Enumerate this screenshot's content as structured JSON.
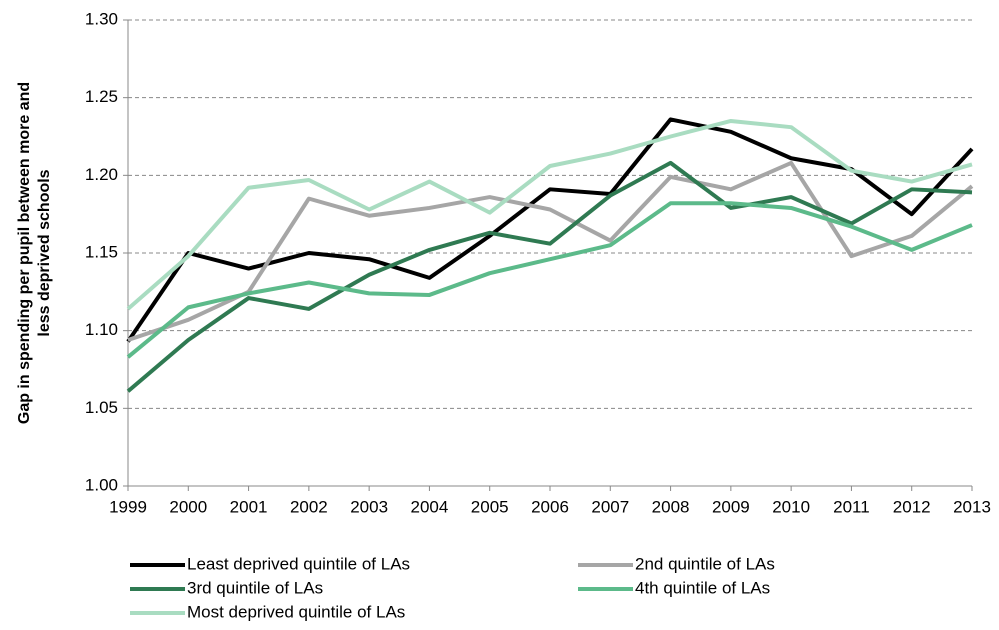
{
  "chart_data": {
    "type": "line",
    "y_label": [
      "Gap in spending per pupil between more and",
      "less deprived schools"
    ],
    "categories": [
      "1999",
      "2000",
      "2001",
      "2002",
      "2003",
      "2004",
      "2005",
      "2006",
      "2007",
      "2008",
      "2009",
      "2010",
      "2011",
      "2012",
      "2013"
    ],
    "series": [
      {
        "name": "Least deprived quintile of LAs",
        "color": "#000000",
        "values": [
          1.093,
          1.15,
          1.14,
          1.15,
          1.146,
          1.134,
          1.161,
          1.191,
          1.188,
          1.236,
          1.228,
          1.211,
          1.204,
          1.175,
          1.217
        ]
      },
      {
        "name": "2nd quintile of LAs",
        "color": "#a6a6a6",
        "values": [
          1.094,
          1.107,
          1.125,
          1.185,
          1.174,
          1.179,
          1.186,
          1.178,
          1.158,
          1.199,
          1.191,
          1.208,
          1.148,
          1.161,
          1.193
        ]
      },
      {
        "name": "3rd quintile of LAs",
        "color": "#2f7a52",
        "values": [
          1.061,
          1.094,
          1.121,
          1.114,
          1.136,
          1.152,
          1.163,
          1.156,
          1.187,
          1.208,
          1.179,
          1.186,
          1.169,
          1.191,
          1.189
        ]
      },
      {
        "name": "4th quintile of LAs",
        "color": "#5cba8a",
        "values": [
          1.083,
          1.115,
          1.124,
          1.131,
          1.124,
          1.123,
          1.137,
          1.146,
          1.155,
          1.182,
          1.182,
          1.179,
          1.167,
          1.152,
          1.168
        ]
      },
      {
        "name": "Most deprived quintile of LAs",
        "color": "#a9dcc1",
        "values": [
          1.114,
          1.148,
          1.192,
          1.197,
          1.178,
          1.196,
          1.176,
          1.206,
          1.214,
          1.225,
          1.235,
          1.231,
          1.203,
          1.196,
          1.207
        ]
      }
    ],
    "ylim": [
      1.0,
      1.3
    ],
    "yticks": [
      {
        "value": 1.0,
        "label": "1.00"
      },
      1.05,
      {
        "value": 1.1,
        "label": "1.10"
      },
      1.15,
      {
        "value": 1.2,
        "label": "1.20"
      },
      1.25,
      {
        "value": 1.3,
        "label": "1.30"
      }
    ],
    "grid": true
  }
}
